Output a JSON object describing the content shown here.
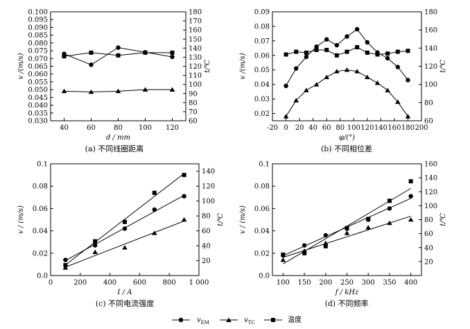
{
  "chart_data": [
    {
      "type": "line",
      "caption": "(a) 不同线圈距离",
      "xlabel": "d / mm",
      "ylabel_left": "v /(m/s)",
      "ylabel_right": "t/℃",
      "xlim": [
        30,
        130
      ],
      "ylim_left": [
        0.03,
        0.1
      ],
      "ylim_right": [
        60,
        180
      ],
      "x_ticks": [
        40,
        60,
        80,
        100,
        120
      ],
      "y_left_ticks": [
        "0.030",
        "0.035",
        "0.040",
        "0.045",
        "0.050",
        "0.055",
        "0.060",
        "0.065",
        "0.070",
        "0.075",
        "0.080",
        "0.085",
        "0.090",
        "0.095",
        "0.100"
      ],
      "y_right_ticks": [
        60,
        70,
        80,
        90,
        100,
        110,
        120,
        130,
        140,
        150,
        160,
        170,
        180
      ],
      "fit": "connected",
      "x": [
        40,
        60,
        80,
        100,
        120
      ],
      "series": [
        {
          "name": "v_EM",
          "marker": "circle",
          "axis": "left",
          "values": [
            0.073,
            0.066,
            0.077,
            0.074,
            0.071
          ]
        },
        {
          "name": "v_TC",
          "marker": "triangle",
          "axis": "left",
          "values": [
            0.049,
            0.0485,
            0.049,
            0.05,
            0.05
          ]
        },
        {
          "name": "温度",
          "marker": "square",
          "axis": "right",
          "values": [
            131,
            135,
            132,
            135,
            135
          ]
        }
      ]
    },
    {
      "type": "line",
      "caption": "(b) 不同相位差",
      "xlabel": "φ/(°)",
      "ylabel_left": "v /(m/s)",
      "ylabel_right": "t/℃",
      "xlim": [
        -20,
        200
      ],
      "ylim_left": [
        0.015,
        0.09
      ],
      "ylim_right": [
        60,
        180
      ],
      "x_ticks": [
        -20,
        0,
        20,
        40,
        60,
        80,
        100,
        120,
        140,
        160,
        180,
        200
      ],
      "y_left_ticks": [
        "0.02",
        "0.03",
        "0.04",
        "0.05",
        "0.06",
        "0.07",
        "0.08",
        "0.09"
      ],
      "y_right_ticks": [
        60,
        80,
        100,
        120,
        140,
        160,
        180
      ],
      "fit": "connected",
      "x": [
        0,
        15,
        30,
        45,
        60,
        75,
        90,
        105,
        120,
        135,
        150,
        165,
        180
      ],
      "series": [
        {
          "name": "v_EM",
          "marker": "circle",
          "axis": "left",
          "values": [
            0.039,
            0.051,
            0.059,
            0.066,
            0.071,
            0.067,
            0.073,
            0.078,
            0.069,
            0.062,
            0.058,
            0.052,
            0.043
          ]
        },
        {
          "name": "v_TC",
          "marker": "triangle",
          "axis": "left",
          "values": [
            0.018,
            0.029,
            0.036,
            0.04,
            0.045,
            0.049,
            0.05,
            0.049,
            0.045,
            0.041,
            0.036,
            0.028,
            0.018
          ]
        },
        {
          "name": "温度",
          "marker": "square",
          "axis": "right",
          "values": [
            133,
            136,
            135,
            138,
            138,
            132,
            136,
            141,
            135,
            133,
            134,
            136,
            137
          ]
        }
      ]
    },
    {
      "type": "scatter",
      "caption": "(c) 不同电流强度",
      "xlabel": "I / A",
      "ylabel_left": "v / (m/s)",
      "ylabel_right": "t/℃",
      "xlim": [
        0,
        1000
      ],
      "ylim_left": [
        0.0,
        0.1
      ],
      "ylim_right": [
        0,
        150
      ],
      "x_ticks": [
        0,
        200,
        400,
        600,
        800,
        1000
      ],
      "x_tick_labels": [
        "0",
        "200",
        "400",
        "600",
        "800",
        "1 000"
      ],
      "y_left_ticks": [
        "0.0",
        "0.02",
        "0.04",
        "0.06",
        "0.08",
        "0.1"
      ],
      "y_right_ticks": [
        20,
        40,
        60,
        80,
        100,
        120,
        140
      ],
      "fit": "linear",
      "x": [
        100,
        300,
        500,
        700,
        900
      ],
      "series": [
        {
          "name": "v_EM",
          "marker": "circle",
          "axis": "left",
          "values": [
            0.014,
            0.027,
            0.042,
            0.059,
            0.071
          ]
        },
        {
          "name": "v_TC",
          "marker": "triangle",
          "axis": "left",
          "values": [
            0.007,
            0.021,
            0.025,
            0.038,
            0.05
          ]
        },
        {
          "name": "温度",
          "marker": "square",
          "axis": "right",
          "values": [
            14,
            46,
            72,
            111,
            135
          ]
        }
      ]
    },
    {
      "type": "scatter",
      "caption": "(d) 不同频率",
      "xlabel": "f / kHz",
      "ylabel_left": "v / (m/s)",
      "ylabel_right": "t/℃",
      "xlim": [
        75,
        425
      ],
      "ylim_left": [
        0.0,
        0.1
      ],
      "ylim_right": [
        0,
        160
      ],
      "x_ticks": [
        100,
        150,
        200,
        250,
        300,
        350,
        400
      ],
      "y_left_ticks": [
        "0.0",
        "0.02",
        "0.04",
        "0.06",
        "0.08",
        "0.1"
      ],
      "y_right_ticks": [
        20,
        40,
        60,
        80,
        100,
        120,
        140,
        160
      ],
      "fit": "linear",
      "x": [
        100,
        150,
        200,
        250,
        300,
        350,
        400
      ],
      "series": [
        {
          "name": "v_EM",
          "marker": "circle",
          "axis": "left",
          "values": [
            0.018,
            0.027,
            0.036,
            0.042,
            0.05,
            0.06,
            0.071
          ]
        },
        {
          "name": "v_TC",
          "marker": "triangle",
          "axis": "left",
          "values": [
            0.014,
            0.022,
            0.029,
            0.038,
            0.043,
            0.047,
            0.05
          ]
        },
        {
          "name": "温度",
          "marker": "square",
          "axis": "right",
          "values": [
            30,
            32,
            42,
            68,
            81,
            107,
            135
          ]
        }
      ]
    }
  ],
  "legend": [
    {
      "marker": "circle",
      "symbol": "v",
      "sub": "EM"
    },
    {
      "marker": "triangle",
      "symbol": "v",
      "sub": "TC"
    },
    {
      "marker": "square",
      "label": "温度"
    }
  ],
  "colors": {
    "line": "#000000",
    "marker": "#000000",
    "background": "#ffffff"
  }
}
